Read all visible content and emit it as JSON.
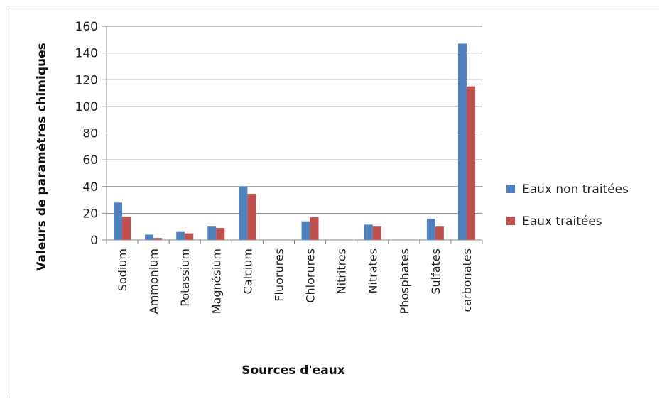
{
  "chart_data": {
    "type": "bar",
    "title": "",
    "xlabel": "Sources d'eaux",
    "ylabel": "Valeurs de paramètres chimiques",
    "ylim": [
      0,
      160
    ],
    "yticks": [
      0,
      20,
      40,
      60,
      80,
      100,
      120,
      140,
      160
    ],
    "grid": true,
    "legend_position": "right",
    "categories": [
      "Sodium",
      "Ammonium",
      "Potassium",
      "Magnésium",
      "Calcium",
      "Fluorures",
      "Chlorures",
      "Nitritres",
      "Nitrates",
      "Phosphates",
      "Sulfates",
      "carbonates"
    ],
    "series": [
      {
        "name": "Eaux non traitées",
        "color": "#4f81bd",
        "values": [
          28,
          4,
          6,
          10,
          40,
          0,
          14,
          0,
          11.5,
          0,
          16,
          147
        ]
      },
      {
        "name": "Eaux traitées",
        "color": "#c0504d",
        "values": [
          17.5,
          1.5,
          5,
          9,
          34.5,
          0,
          17,
          0,
          10,
          0,
          10,
          115
        ]
      }
    ]
  }
}
